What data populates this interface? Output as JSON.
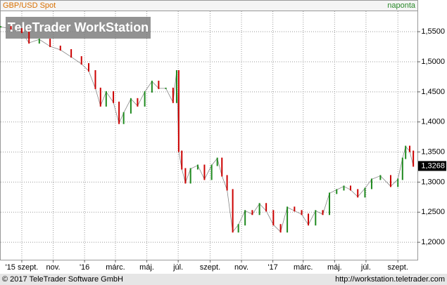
{
  "chart_data": {
    "type": "line",
    "title": "GBP/USD Spot",
    "subtitle": "naponta",
    "watermark": "TeleTrader WorkStation",
    "footer_left": "© 2017 TeleTrader Software GmbH",
    "footer_right": "http://workstation.teletrader.com",
    "up_color": "#1f8a1f",
    "down_color": "#cc0000",
    "grid": true,
    "xlim": [
      0,
      810
    ],
    "ylim": [
      1.171,
      1.584
    ],
    "xticks": [
      {
        "value": 41,
        "label": "'15 szept."
      },
      {
        "value": 102,
        "label": "nov."
      },
      {
        "value": 163,
        "label": "'16"
      },
      {
        "value": 223,
        "label": "márc."
      },
      {
        "value": 284,
        "label": "máj."
      },
      {
        "value": 345,
        "label": "júl."
      },
      {
        "value": 407,
        "label": "szept."
      },
      {
        "value": 468,
        "label": "nov."
      },
      {
        "value": 529,
        "label": "'17"
      },
      {
        "value": 588,
        "label": "márc."
      },
      {
        "value": 649,
        "label": "máj."
      },
      {
        "value": 710,
        "label": "júl."
      },
      {
        "value": 772,
        "label": "szept."
      }
    ],
    "yticks": [
      {
        "value": 1.2,
        "label": "1,2000"
      },
      {
        "value": 1.25,
        "label": "1,2500"
      },
      {
        "value": 1.3,
        "label": "1,3000"
      },
      {
        "value": 1.35,
        "label": "1,3500"
      },
      {
        "value": 1.4,
        "label": "1,4000"
      },
      {
        "value": 1.45,
        "label": "1,4500"
      },
      {
        "value": 1.5,
        "label": "1,5000"
      },
      {
        "value": 1.55,
        "label": "1,5500"
      }
    ],
    "last_price": {
      "value": 1.3268,
      "label": "1,3268"
    },
    "x": [
      0,
      20,
      41,
      55,
      75,
      96,
      116,
      137,
      157,
      171,
      184,
      194,
      205,
      219,
      230,
      239,
      253,
      266,
      280,
      294,
      307,
      321,
      335,
      342,
      346,
      352,
      359,
      369,
      383,
      396,
      410,
      421,
      430,
      440,
      451,
      462,
      475,
      489,
      503,
      516,
      530,
      544,
      557,
      571,
      585,
      598,
      612,
      626,
      639,
      653,
      667,
      680,
      694,
      708,
      721,
      738,
      758,
      772,
      781,
      787,
      795,
      802
    ],
    "values": [
      1.5581,
      1.5547,
      1.5488,
      1.5314,
      1.5372,
      1.5256,
      1.5198,
      1.5081,
      1.4965,
      1.4849,
      1.4558,
      1.4267,
      1.45,
      1.4326,
      1.3977,
      1.4151,
      1.4384,
      1.4267,
      1.45,
      1.4674,
      1.4558,
      1.4558,
      1.4326,
      1.4849,
      1.3512,
      1.3221,
      1.2988,
      1.3221,
      1.3279,
      1.3047,
      1.3279,
      1.3395,
      1.3105,
      1.2872,
      1.2174,
      1.2291,
      1.2523,
      1.2465,
      1.264,
      1.2523,
      1.2291,
      1.2174,
      1.2581,
      1.2523,
      1.2465,
      1.2291,
      1.2523,
      1.2465,
      1.2814,
      1.2872,
      1.293,
      1.2872,
      1.2756,
      1.2895,
      1.3047,
      1.3105,
      1.293,
      1.3047,
      1.3395,
      1.3593,
      1.3512,
      1.3268
    ]
  }
}
